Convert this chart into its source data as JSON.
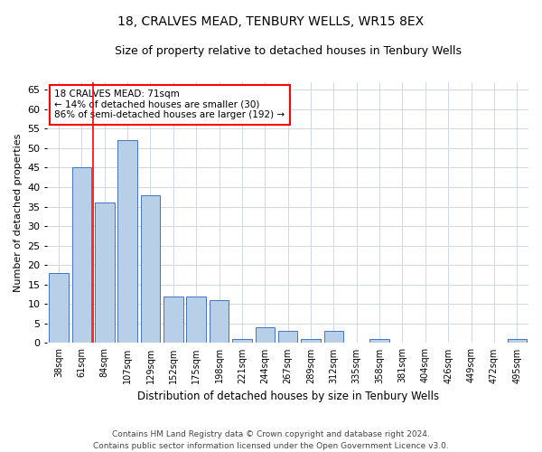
{
  "title": "18, CRALVES MEAD, TENBURY WELLS, WR15 8EX",
  "subtitle": "Size of property relative to detached houses in Tenbury Wells",
  "xlabel": "Distribution of detached houses by size in Tenbury Wells",
  "ylabel": "Number of detached properties",
  "footer_line1": "Contains HM Land Registry data © Crown copyright and database right 2024.",
  "footer_line2": "Contains public sector information licensed under the Open Government Licence v3.0.",
  "categories": [
    "38sqm",
    "61sqm",
    "84sqm",
    "107sqm",
    "129sqm",
    "152sqm",
    "175sqm",
    "198sqm",
    "221sqm",
    "244sqm",
    "267sqm",
    "289sqm",
    "312sqm",
    "335sqm",
    "358sqm",
    "381sqm",
    "404sqm",
    "426sqm",
    "449sqm",
    "472sqm",
    "495sqm"
  ],
  "values": [
    18,
    45,
    36,
    52,
    38,
    12,
    12,
    11,
    1,
    4,
    3,
    1,
    3,
    0,
    1,
    0,
    0,
    0,
    0,
    0,
    1
  ],
  "bar_color": "#b8cfe8",
  "bar_edge_color": "#4472c4",
  "ylim": [
    0,
    67
  ],
  "yticks": [
    0,
    5,
    10,
    15,
    20,
    25,
    30,
    35,
    40,
    45,
    50,
    55,
    60,
    65
  ],
  "grid_color": "#d0d8e8",
  "annotation_text_line1": "18 CRALVES MEAD: 71sqm",
  "annotation_text_line2": "← 14% of detached houses are smaller (30)",
  "annotation_text_line3": "86% of semi-detached houses are larger (192) →",
  "redline_x": 1.5,
  "bar_width": 0.85
}
